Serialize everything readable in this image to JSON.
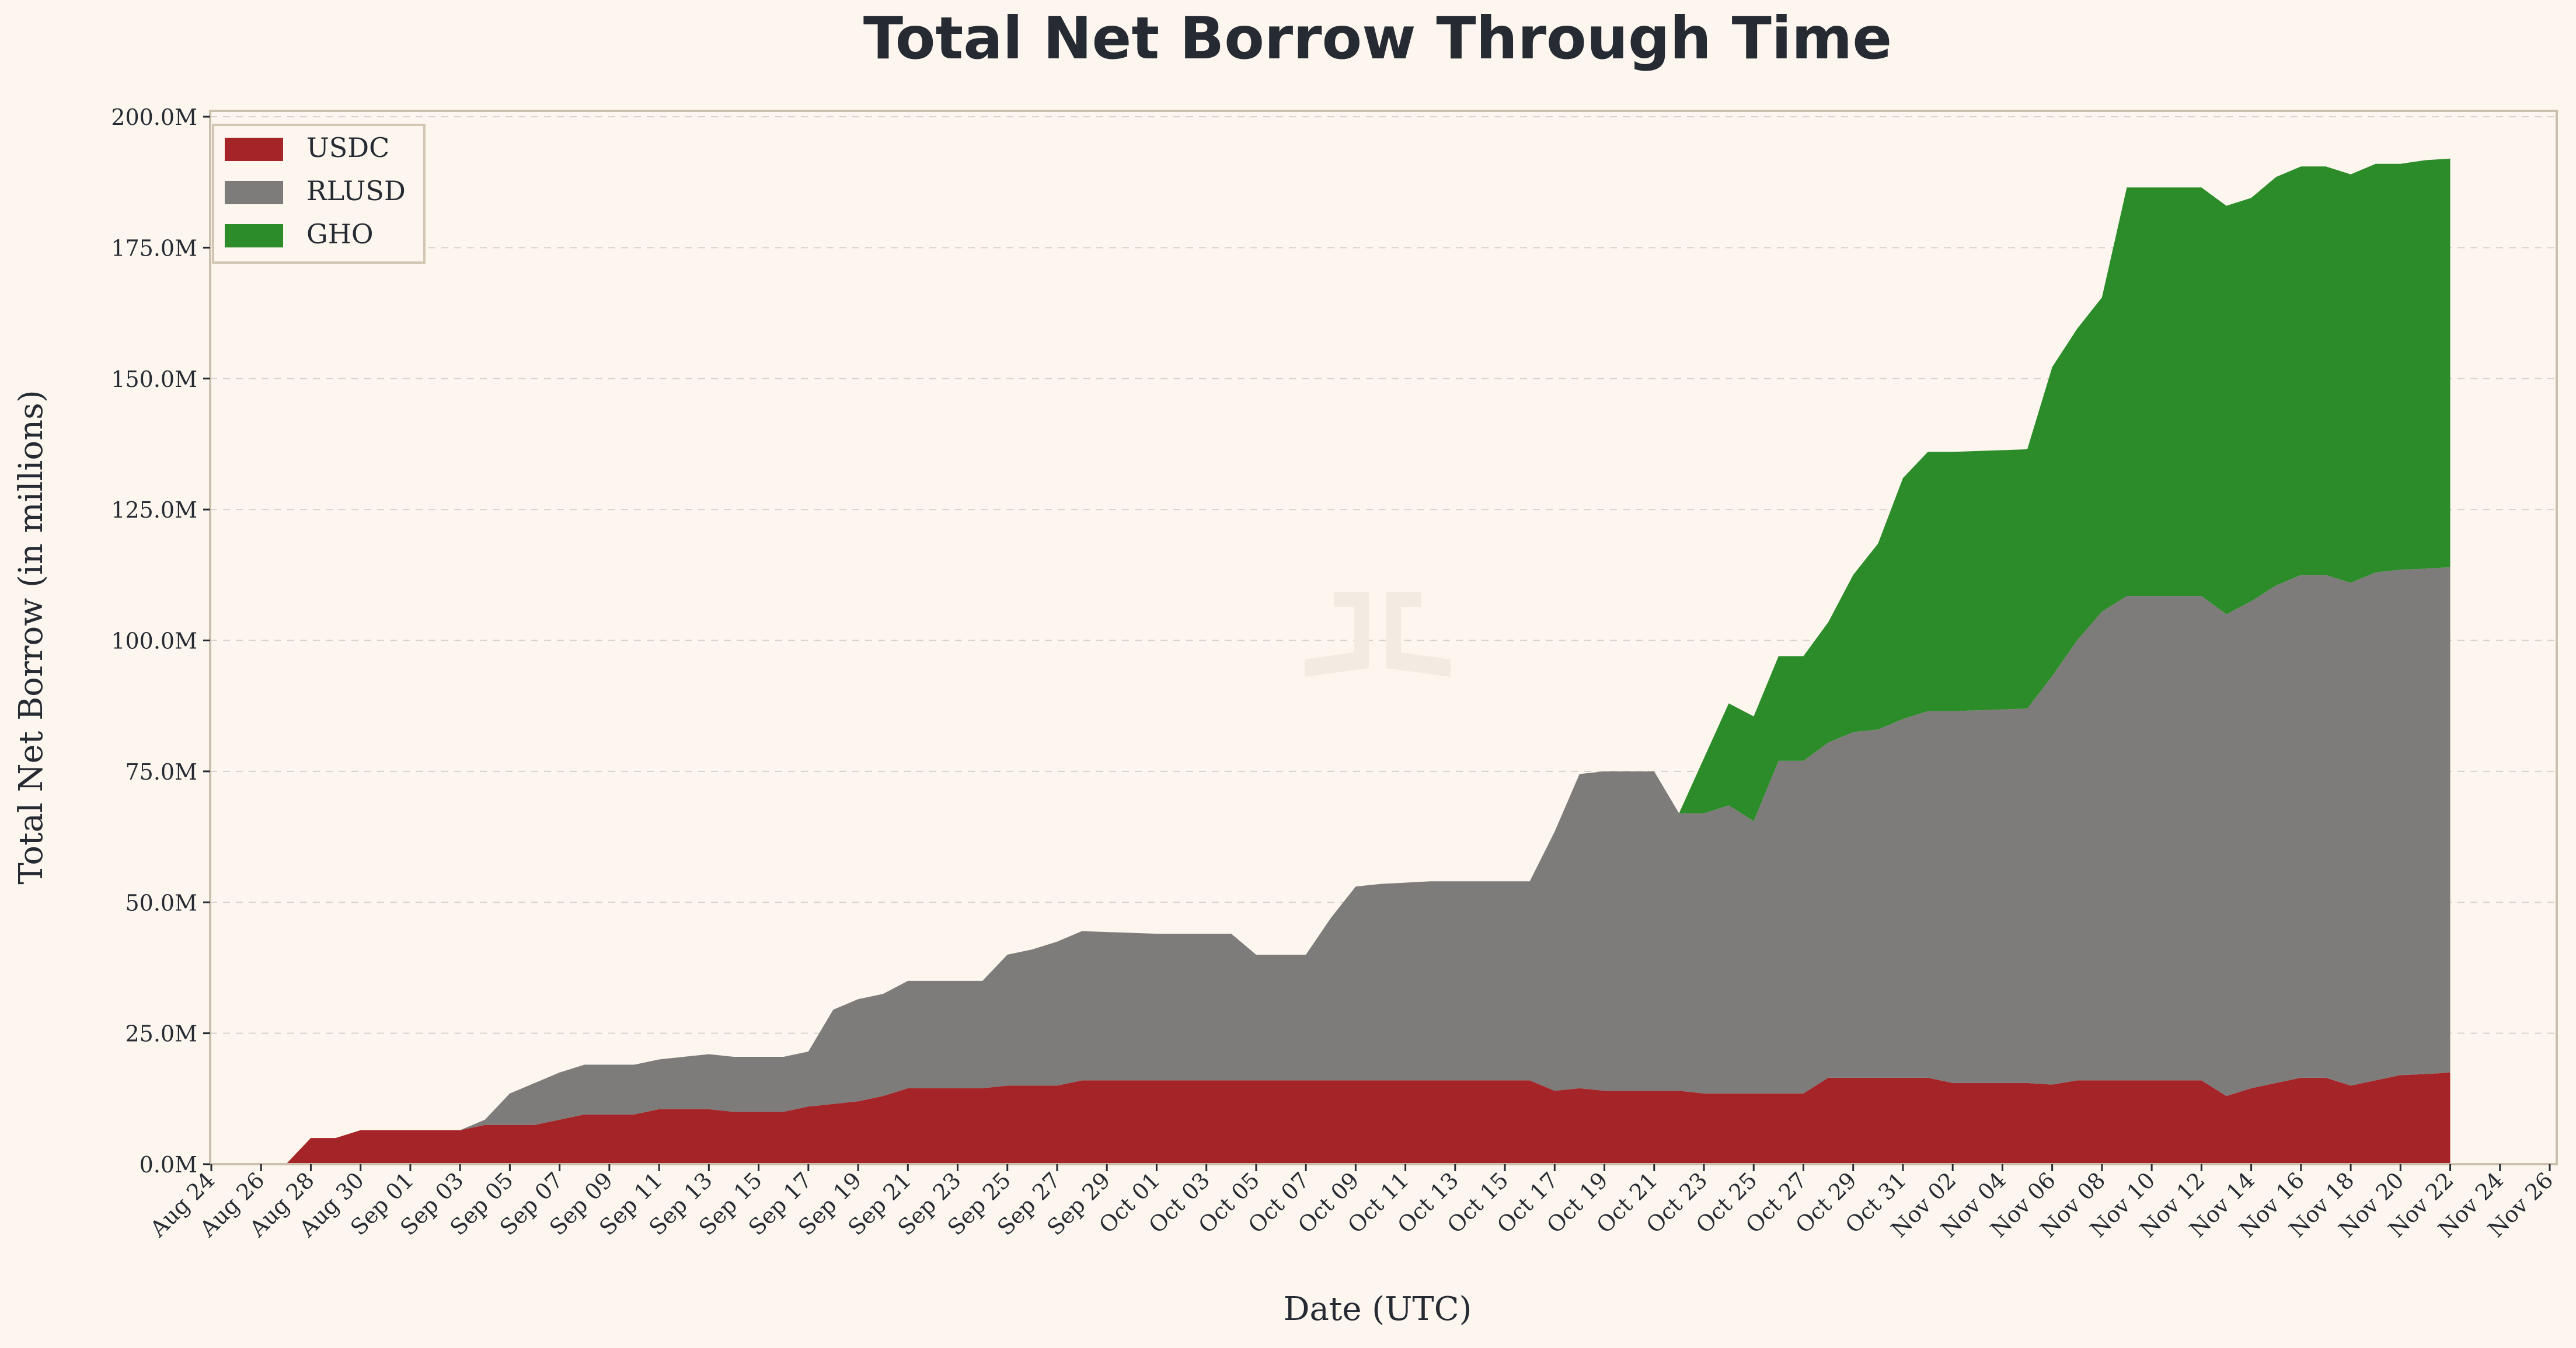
{
  "chart_data": {
    "type": "area",
    "stacked": true,
    "title": "Total Net Borrow Through Time",
    "xlabel": "Date (UTC)",
    "ylabel": "Total Net Borrow (in millions)",
    "ylim": [
      0,
      200
    ],
    "xlim": [
      "2025-08-24",
      "2025-11-26"
    ],
    "grid": "horizontal dashed",
    "legend_position": "top-left",
    "y_ticks": [
      {
        "value": 0,
        "label": "0.0M"
      },
      {
        "value": 25,
        "label": "25.0M"
      },
      {
        "value": 50,
        "label": "50.0M"
      },
      {
        "value": 75,
        "label": "75.0M"
      },
      {
        "value": 100,
        "label": "100.0M"
      },
      {
        "value": 125,
        "label": "125.0M"
      },
      {
        "value": 150,
        "label": "150.0M"
      },
      {
        "value": 175,
        "label": "175.0M"
      },
      {
        "value": 200,
        "label": "200.0M"
      }
    ],
    "x_ticks": [
      "Aug 24",
      "Aug 26",
      "Aug 28",
      "Aug 30",
      "Sep 01",
      "Sep 03",
      "Sep 05",
      "Sep 07",
      "Sep 09",
      "Sep 11",
      "Sep 13",
      "Sep 15",
      "Sep 17",
      "Sep 19",
      "Sep 21",
      "Sep 23",
      "Sep 25",
      "Sep 27",
      "Sep 29",
      "Oct 01",
      "Oct 03",
      "Oct 05",
      "Oct 07",
      "Oct 09",
      "Oct 11",
      "Oct 13",
      "Oct 15",
      "Oct 17",
      "Oct 19",
      "Oct 21",
      "Oct 23",
      "Oct 25",
      "Oct 27",
      "Oct 29",
      "Oct 31",
      "Nov 02",
      "Nov 04",
      "Nov 06",
      "Nov 08",
      "Nov 10",
      "Nov 12",
      "Nov 14",
      "Nov 16",
      "Nov 18",
      "Nov 20",
      "Nov 22",
      "Nov 24",
      "Nov 26"
    ],
    "series": [
      {
        "name": "USDC",
        "color": "#a52427",
        "points": [
          [
            "Aug 27",
            0
          ],
          [
            "Aug 28",
            5
          ],
          [
            "Aug 29",
            5
          ],
          [
            "Aug 30",
            6.5
          ],
          [
            "Sep 01",
            6.5
          ],
          [
            "Sep 03",
            6.5
          ],
          [
            "Sep 04",
            7.5
          ],
          [
            "Sep 05",
            7.5
          ],
          [
            "Sep 07",
            8.5
          ],
          [
            "Sep 08",
            9.5
          ],
          [
            "Sep 10",
            9.5
          ],
          [
            "Sep 11",
            10.5
          ],
          [
            "Sep 13",
            10.5
          ],
          [
            "Sep 14",
            10
          ],
          [
            "Sep 16",
            10
          ],
          [
            "Sep 17",
            11
          ],
          [
            "Sep 18",
            11.5
          ],
          [
            "Sep 19",
            12
          ],
          [
            "Sep 20",
            13
          ],
          [
            "Sep 21",
            14.5
          ],
          [
            "Sep 24",
            14.5
          ],
          [
            "Sep 25",
            15
          ],
          [
            "Sep 27",
            15
          ],
          [
            "Sep 28",
            16
          ],
          [
            "Oct 06",
            16
          ],
          [
            "Oct 16",
            16
          ],
          [
            "Oct 17",
            14
          ],
          [
            "Oct 18",
            14.5
          ],
          [
            "Oct 19",
            14
          ],
          [
            "Oct 22",
            14
          ],
          [
            "Oct 23",
            13.5
          ],
          [
            "Oct 27",
            13.5
          ],
          [
            "Oct 28",
            16.5
          ],
          [
            "Nov 01",
            16.5
          ],
          [
            "Nov 02",
            15.5
          ],
          [
            "Nov 05",
            15.5
          ],
          [
            "Nov 06",
            15.2
          ],
          [
            "Nov 07",
            16
          ],
          [
            "Nov 08",
            16
          ],
          [
            "Nov 12",
            16
          ],
          [
            "Nov 13",
            13
          ],
          [
            "Nov 14",
            14.5
          ],
          [
            "Nov 15",
            15.5
          ],
          [
            "Nov 16",
            16.5
          ],
          [
            "Nov 17",
            16.5
          ],
          [
            "Nov 18",
            15
          ],
          [
            "Nov 19",
            16
          ],
          [
            "Nov 20",
            17
          ],
          [
            "Nov 21",
            17.2
          ],
          [
            "Nov 22",
            17.5
          ]
        ]
      },
      {
        "name": "RLUSD",
        "color": "#7e7c7b",
        "points": [
          [
            "Aug 27",
            0
          ],
          [
            "Sep 03",
            0
          ],
          [
            "Sep 04",
            1
          ],
          [
            "Sep 05",
            6
          ],
          [
            "Sep 06",
            8
          ],
          [
            "Sep 07",
            9
          ],
          [
            "Sep 08",
            9.5
          ],
          [
            "Sep 10",
            9.5
          ],
          [
            "Sep 11",
            9.5
          ],
          [
            "Sep 13",
            10.5
          ],
          [
            "Sep 14",
            10.5
          ],
          [
            "Sep 16",
            10.5
          ],
          [
            "Sep 17",
            10.5
          ],
          [
            "Sep 18",
            18
          ],
          [
            "Sep 19",
            19.5
          ],
          [
            "Sep 20",
            19.5
          ],
          [
            "Sep 21",
            20.5
          ],
          [
            "Sep 24",
            20.5
          ],
          [
            "Sep 25",
            25
          ],
          [
            "Sep 26",
            26
          ],
          [
            "Sep 27",
            27.5
          ],
          [
            "Sep 28",
            28.5
          ],
          [
            "Oct 01",
            28
          ],
          [
            "Oct 04",
            28
          ],
          [
            "Oct 05",
            24
          ],
          [
            "Oct 07",
            24
          ],
          [
            "Oct 08",
            31
          ],
          [
            "Oct 09",
            37
          ],
          [
            "Oct 10",
            37.5
          ],
          [
            "Oct 12",
            38
          ],
          [
            "Oct 15",
            38
          ],
          [
            "Oct 16",
            38
          ],
          [
            "Oct 17",
            49.5
          ],
          [
            "Oct 18",
            60
          ],
          [
            "Oct 19",
            61
          ],
          [
            "Oct 21",
            61
          ],
          [
            "Oct 22",
            53
          ],
          [
            "Oct 23",
            53.5
          ],
          [
            "Oct 24",
            55
          ],
          [
            "Oct 25",
            52
          ],
          [
            "Oct 26",
            63.5
          ],
          [
            "Oct 27",
            63.5
          ],
          [
            "Oct 28",
            64
          ],
          [
            "Oct 29",
            66
          ],
          [
            "Oct 30",
            66.5
          ],
          [
            "Oct 31",
            68.5
          ],
          [
            "Nov 01",
            70
          ],
          [
            "Nov 02",
            71
          ],
          [
            "Nov 05",
            71.5
          ],
          [
            "Nov 06",
            78
          ],
          [
            "Nov 07",
            84
          ],
          [
            "Nov 08",
            89.5
          ],
          [
            "Nov 09",
            92.5
          ],
          [
            "Nov 12",
            92.5
          ],
          [
            "Nov 13",
            92
          ],
          [
            "Nov 14",
            93
          ],
          [
            "Nov 15",
            95
          ],
          [
            "Nov 16",
            96
          ],
          [
            "Nov 17",
            96
          ],
          [
            "Nov 18",
            96
          ],
          [
            "Nov 19",
            97
          ],
          [
            "Nov 20",
            96.5
          ],
          [
            "Nov 21",
            96.5
          ],
          [
            "Nov 22",
            96.5
          ]
        ]
      },
      {
        "name": "GHO",
        "color": "#2c8c2a",
        "points": [
          [
            "Aug 27",
            0
          ],
          [
            "Oct 22",
            0
          ],
          [
            "Oct 23",
            10.5
          ],
          [
            "Oct 24",
            19.5
          ],
          [
            "Oct 25",
            20
          ],
          [
            "Oct 26",
            20
          ],
          [
            "Oct 27",
            20
          ],
          [
            "Oct 28",
            23
          ],
          [
            "Oct 29",
            30
          ],
          [
            "Oct 30",
            35.5
          ],
          [
            "Oct 31",
            46
          ],
          [
            "Nov 01",
            49.5
          ],
          [
            "Nov 02",
            49.5
          ],
          [
            "Nov 05",
            49.5
          ],
          [
            "Nov 06",
            59
          ],
          [
            "Nov 07",
            59.5
          ],
          [
            "Nov 08",
            60
          ],
          [
            "Nov 09",
            78
          ],
          [
            "Nov 12",
            78
          ],
          [
            "Nov 13",
            78
          ],
          [
            "Nov 14",
            77
          ],
          [
            "Nov 15",
            78
          ],
          [
            "Nov 16",
            78
          ],
          [
            "Nov 17",
            78
          ],
          [
            "Nov 18",
            78
          ],
          [
            "Nov 19",
            78
          ],
          [
            "Nov 20",
            77.5
          ],
          [
            "Nov 21",
            78
          ],
          [
            "Nov 22",
            78
          ]
        ]
      }
    ]
  }
}
